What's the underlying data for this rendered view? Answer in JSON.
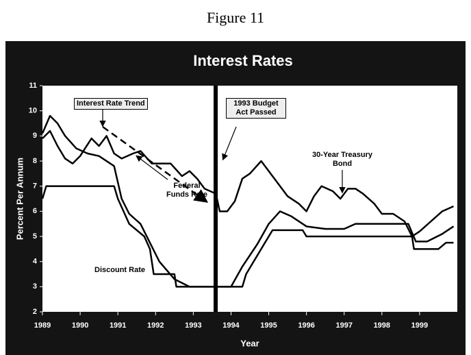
{
  "figure_label": "Figure 11",
  "chart_data": {
    "type": "line",
    "title": "Interest Rates",
    "x_label": "Year",
    "y_label": "Percent Per Annum",
    "annotations": [
      "Interest Rate Trend",
      "1993 Budget Act Passed"
    ],
    "xlim": [
      1989,
      2000
    ],
    "xticks": [
      1989,
      1990,
      1991,
      1992,
      1993,
      1994,
      1995,
      1996,
      1997,
      1998,
      1999
    ],
    "ylim": [
      2,
      11
    ],
    "yticks": [
      2,
      3,
      4,
      5,
      6,
      7,
      8,
      9,
      10,
      11
    ],
    "series": [
      {
        "name": "30-Year Treasury Bond",
        "color": "#000000",
        "x": [
          1989.0,
          1989.2,
          1989.4,
          1989.6,
          1989.8,
          1990.0,
          1990.3,
          1990.5,
          1990.7,
          1990.9,
          1991.1,
          1991.4,
          1991.6,
          1991.9,
          1992.1,
          1992.4,
          1992.7,
          1992.9,
          1993.1,
          1993.3,
          1993.6,
          1993.7,
          1993.9,
          1994.1,
          1994.3,
          1994.5,
          1994.8,
          1995.0,
          1995.3,
          1995.5,
          1995.8,
          1996.0,
          1996.2,
          1996.4,
          1996.7,
          1996.9,
          1997.1,
          1997.3,
          1997.5,
          1997.8,
          1998.0,
          1998.3,
          1998.6,
          1998.8,
          1999.0,
          1999.3,
          1999.6,
          1999.9
        ],
        "values": [
          8.9,
          9.2,
          8.6,
          8.1,
          7.9,
          8.2,
          8.9,
          8.6,
          9.0,
          8.3,
          8.1,
          8.3,
          8.4,
          7.9,
          7.9,
          7.9,
          7.4,
          7.6,
          7.3,
          6.9,
          6.7,
          6.0,
          6.0,
          6.4,
          7.3,
          7.5,
          8.0,
          7.6,
          7.0,
          6.6,
          6.3,
          6.0,
          6.6,
          7.0,
          6.8,
          6.5,
          6.9,
          6.9,
          6.7,
          6.3,
          5.9,
          5.9,
          5.6,
          5.0,
          5.2,
          5.6,
          6.0,
          6.2
        ]
      },
      {
        "name": "Federal Funds Rate",
        "color": "#000000",
        "x": [
          1989.0,
          1989.2,
          1989.4,
          1989.6,
          1989.9,
          1990.2,
          1990.5,
          1990.9,
          1991.1,
          1991.3,
          1991.6,
          1991.9,
          1992.1,
          1992.5,
          1992.9,
          1993.5,
          1994.0,
          1994.3,
          1994.7,
          1995.0,
          1995.3,
          1995.6,
          1996.0,
          1996.5,
          1997.0,
          1997.3,
          1998.0,
          1998.7,
          1998.9,
          1999.2,
          1999.6,
          1999.9
        ],
        "values": [
          9.1,
          9.8,
          9.5,
          9.0,
          8.5,
          8.3,
          8.2,
          7.8,
          6.5,
          5.9,
          5.5,
          4.6,
          4.0,
          3.3,
          3.0,
          3.0,
          3.0,
          3.8,
          4.7,
          5.5,
          6.0,
          5.8,
          5.4,
          5.3,
          5.3,
          5.5,
          5.5,
          5.5,
          4.8,
          4.8,
          5.1,
          5.4
        ]
      },
      {
        "name": "Discount Rate",
        "color": "#000000",
        "x": [
          1989.0,
          1989.1,
          1990.9,
          1991.0,
          1991.3,
          1991.7,
          1991.85,
          1991.95,
          1992.5,
          1992.55,
          1994.3,
          1994.4,
          1994.6,
          1994.9,
          1995.1,
          1995.9,
          1996.0,
          1998.8,
          1998.85,
          1999.5,
          1999.7,
          1999.9
        ],
        "values": [
          6.5,
          7.0,
          7.0,
          6.5,
          5.5,
          5.0,
          4.5,
          3.5,
          3.5,
          3.0,
          3.0,
          3.5,
          4.0,
          4.75,
          5.25,
          5.25,
          5.0,
          5.0,
          4.5,
          4.5,
          4.75,
          4.75
        ]
      }
    ]
  }
}
